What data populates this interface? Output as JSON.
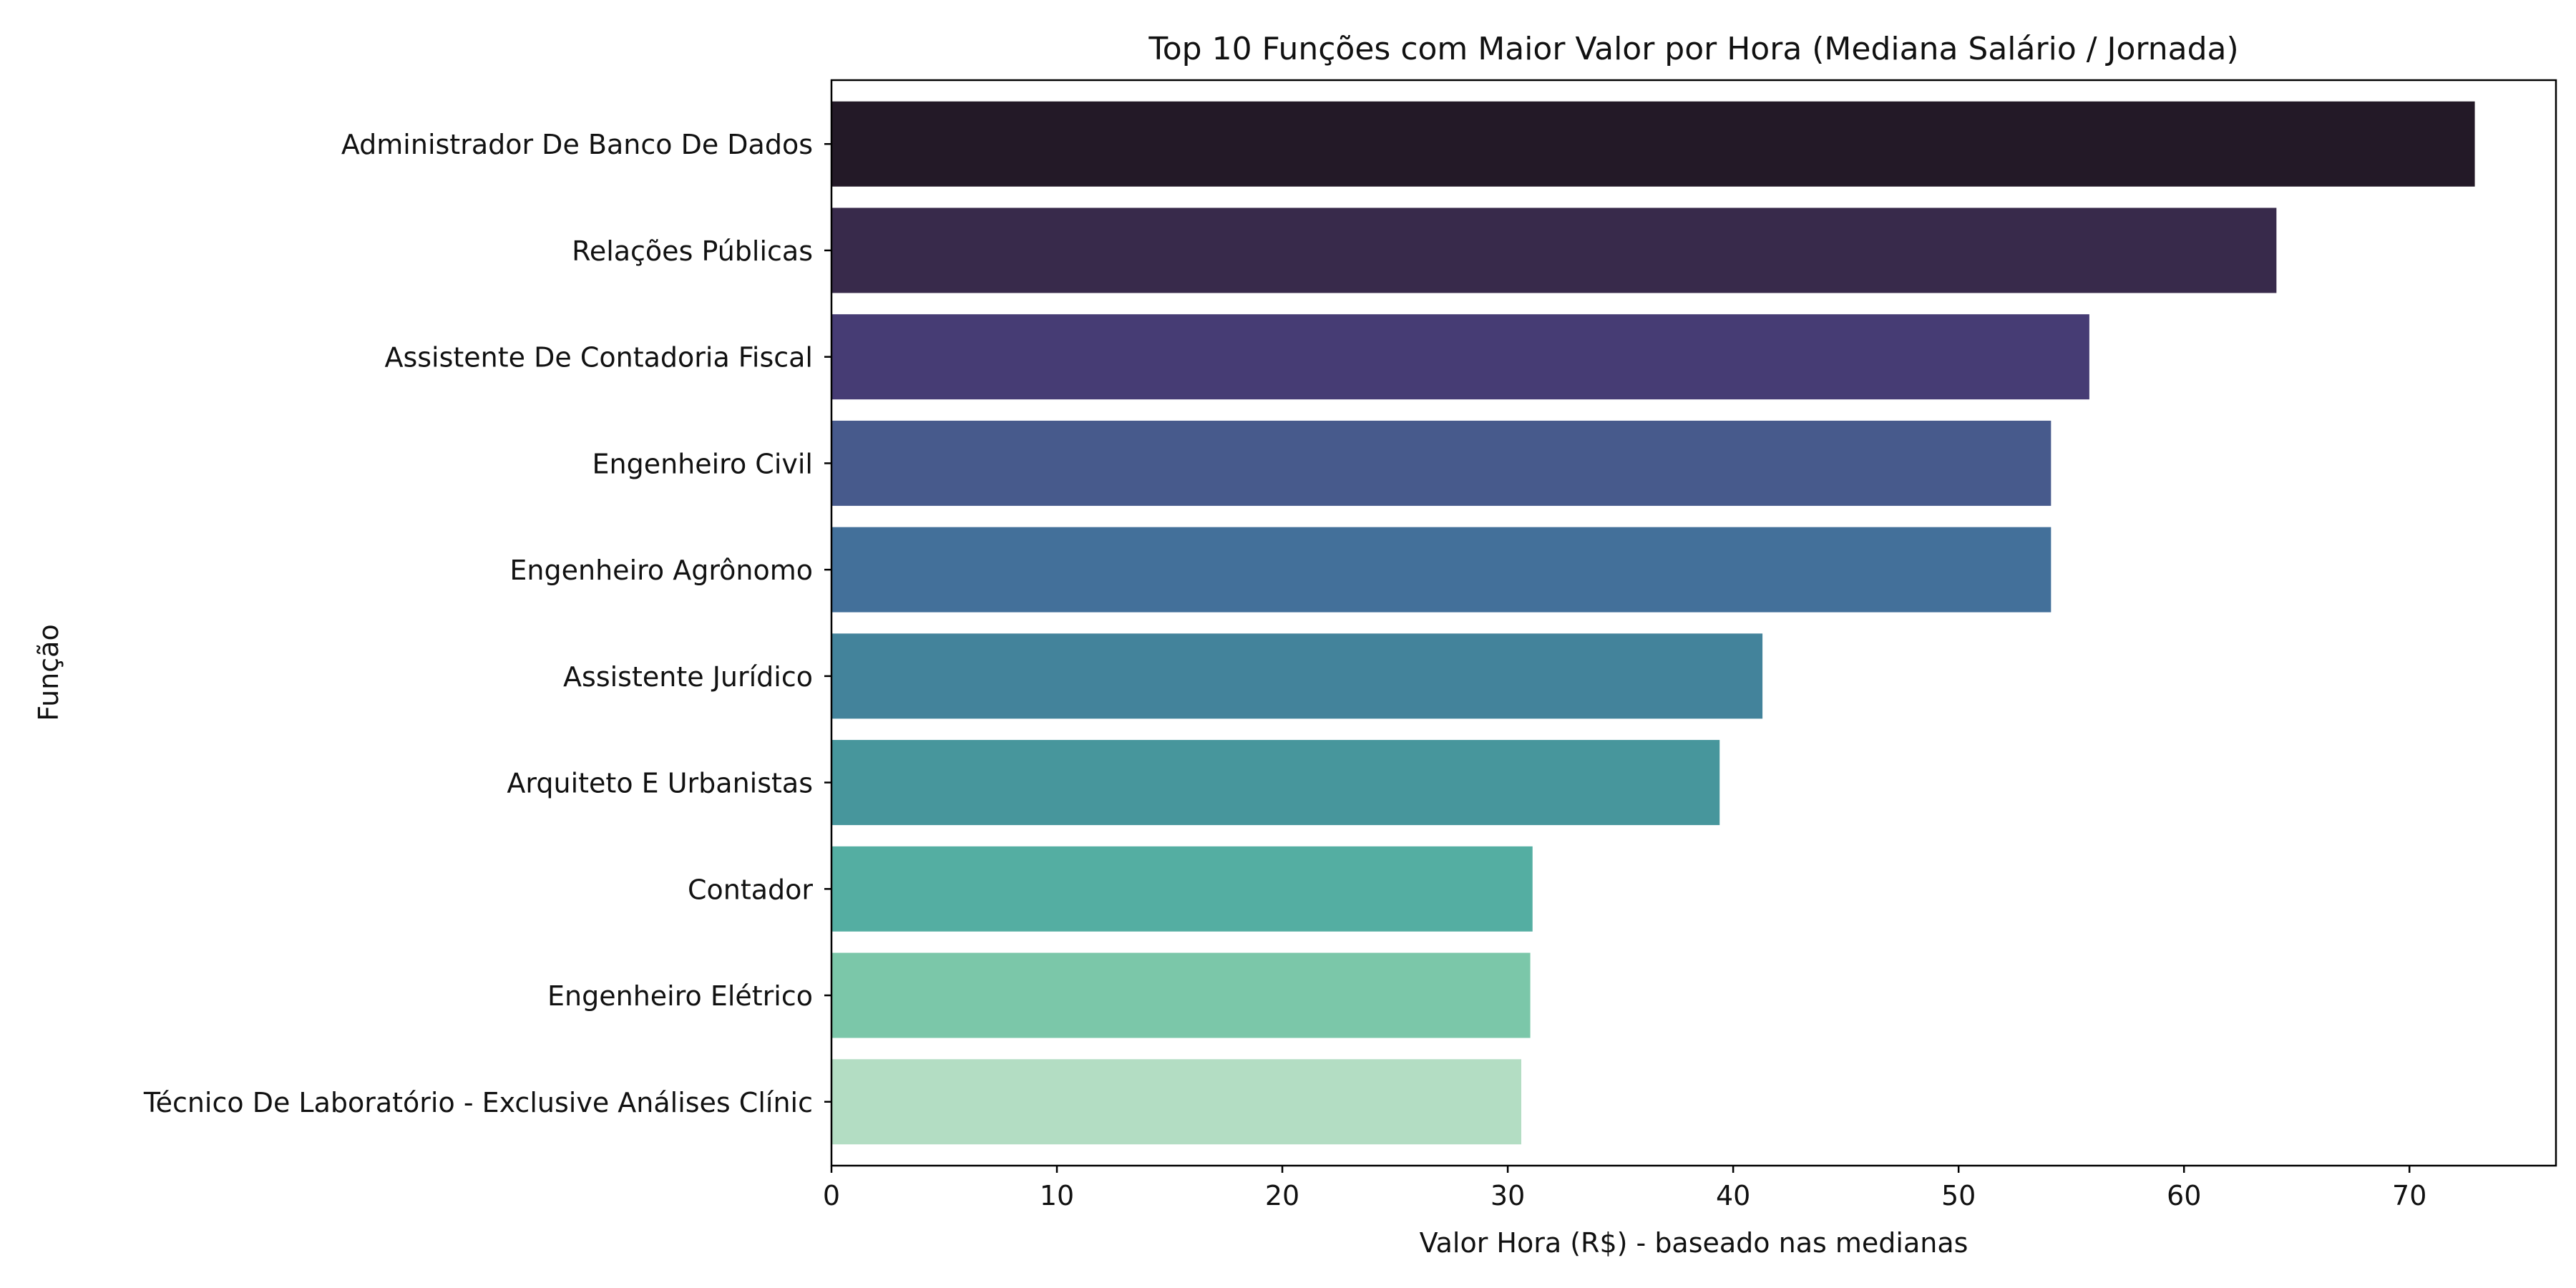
{
  "chart_data": {
    "type": "bar",
    "orientation": "horizontal",
    "title": "Top 10 Funções com Maior Valor por Hora (Mediana Salário / Jornada)",
    "xlabel": "Valor Hora (R$) - baseado nas medianas",
    "ylabel": "Função",
    "xlim": [
      0,
      76.5
    ],
    "xticks": [
      0,
      10,
      20,
      30,
      40,
      50,
      60,
      70
    ],
    "grid": false,
    "categories": [
      "Administrador De Banco De Dados",
      "Relações Públicas",
      "Assistente De Contadoria Fiscal",
      "Engenheiro Civil",
      "Engenheiro Agrônomo",
      "Assistente Jurídico",
      "Arquiteto E Urbanistas",
      "Contador",
      "Engenheiro Elétrico",
      "Técnico De Laboratório - Exclusive Análises Clínic"
    ],
    "values": [
      72.9,
      64.1,
      55.8,
      54.1,
      54.1,
      41.3,
      39.4,
      31.1,
      31.0,
      30.6
    ],
    "colors": [
      "#231927",
      "#382A4B",
      "#463C74",
      "#475A8C",
      "#43709A",
      "#43839B",
      "#47969C",
      "#54AEA2",
      "#7BC7A9",
      "#B3DDC3"
    ]
  }
}
